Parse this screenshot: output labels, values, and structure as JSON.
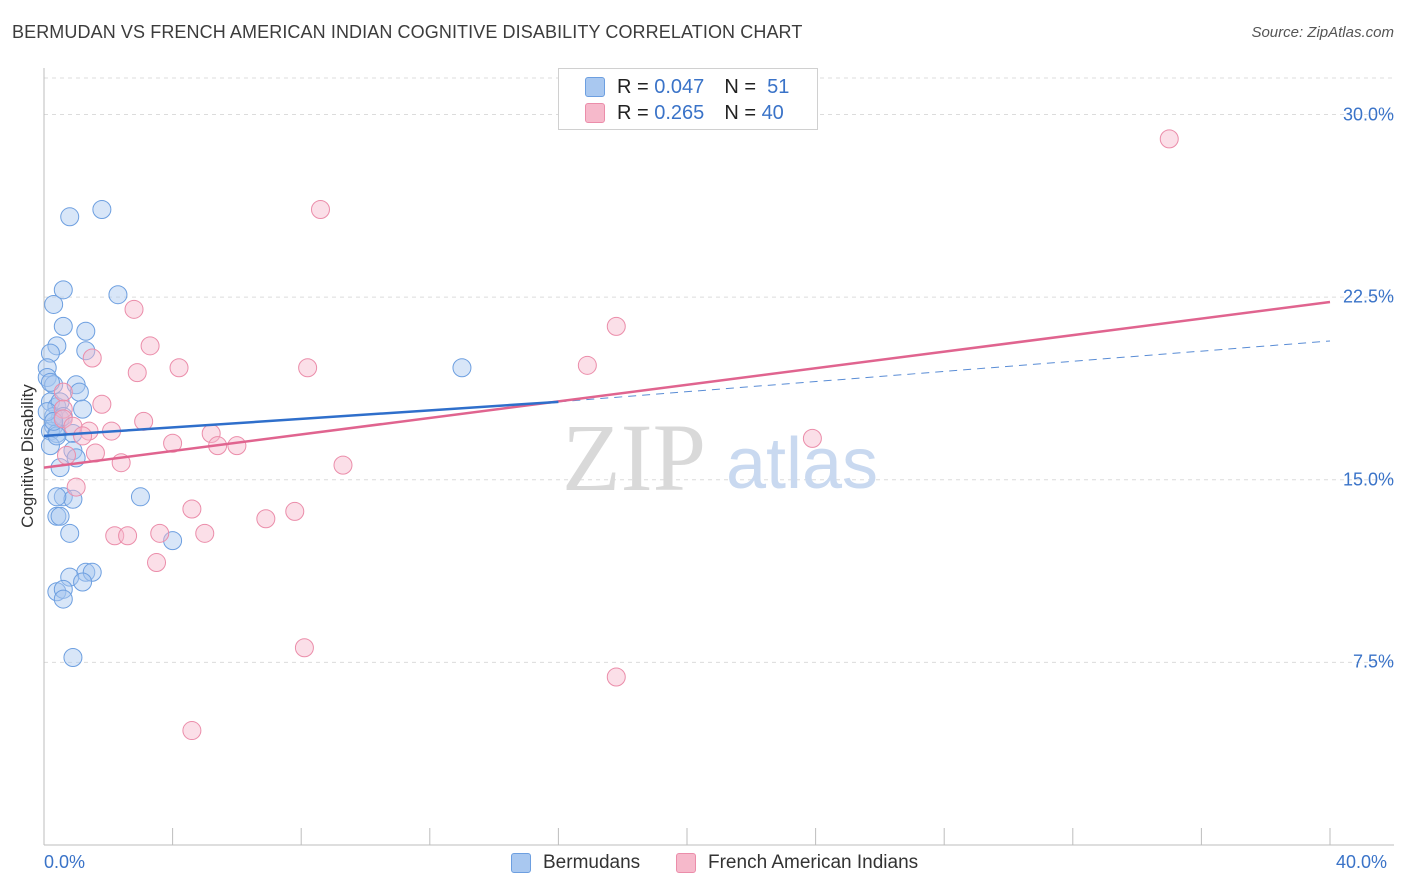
{
  "title": "BERMUDAN VS FRENCH AMERICAN INDIAN COGNITIVE DISABILITY CORRELATION CHART",
  "source": "Source: ZipAtlas.com",
  "watermark": {
    "zip": "ZIP",
    "atlas": "atlas"
  },
  "legend": {
    "rows": [
      {
        "r_label": "R =",
        "r_value": "0.047",
        "n_label": "N =",
        "n_value": "51"
      },
      {
        "r_label": "R =",
        "r_value": "0.265",
        "n_label": "N =",
        "n_value": "40"
      }
    ]
  },
  "bottom_legend": [
    "Bermudans",
    "French American Indians"
  ],
  "colors": {
    "blue_fill": "#a9c8f0",
    "blue_stroke": "#6d9fe0",
    "blue_line": "#2f6fcb",
    "pink_fill": "#f6b9cb",
    "pink_stroke": "#eb8daa",
    "pink_line": "#e0648f",
    "tick_text": "#3a73c8",
    "grid": "#dcdcdc"
  },
  "chart_data": {
    "type": "scatter",
    "title": "BERMUDAN VS FRENCH AMERICAN INDIAN COGNITIVE DISABILITY CORRELATION CHART",
    "xlabel": "",
    "ylabel": "Cognitive Disability",
    "xlim": [
      0,
      40
    ],
    "ylim": [
      0,
      31.5
    ],
    "x_tick_labels": [
      "0.0%",
      "40.0%"
    ],
    "y_ticks": [
      7.5,
      15.0,
      22.5,
      30.0
    ],
    "y_tick_labels": [
      "7.5%",
      "15.0%",
      "22.5%",
      "30.0%"
    ],
    "grid": true,
    "legend_position": "top-center",
    "series": [
      {
        "name": "Bermudans",
        "r": 0.047,
        "n": 51,
        "trend": {
          "x": [
            0,
            16
          ],
          "y": [
            16.8,
            18.2
          ],
          "dashed_to": [
            40,
            20.7
          ]
        },
        "points": [
          [
            0.8,
            25.8
          ],
          [
            1.8,
            26.1
          ],
          [
            0.3,
            22.2
          ],
          [
            0.6,
            22.8
          ],
          [
            2.3,
            22.6
          ],
          [
            0.6,
            21.3
          ],
          [
            1.3,
            21.1
          ],
          [
            0.4,
            20.5
          ],
          [
            0.2,
            20.2
          ],
          [
            1.3,
            20.3
          ],
          [
            0.1,
            19.6
          ],
          [
            0.1,
            19.2
          ],
          [
            0.3,
            18.9
          ],
          [
            1.0,
            18.9
          ],
          [
            1.1,
            18.6
          ],
          [
            0.2,
            18.2
          ],
          [
            0.4,
            18.0
          ],
          [
            1.2,
            17.9
          ],
          [
            0.5,
            17.5
          ],
          [
            0.3,
            17.2
          ],
          [
            0.2,
            17.0
          ],
          [
            0.4,
            16.9
          ],
          [
            0.9,
            16.9
          ],
          [
            0.2,
            16.4
          ],
          [
            0.9,
            16.2
          ],
          [
            1.0,
            15.9
          ],
          [
            0.5,
            15.5
          ],
          [
            0.6,
            14.3
          ],
          [
            0.9,
            14.2
          ],
          [
            0.4,
            14.3
          ],
          [
            3.0,
            14.3
          ],
          [
            0.4,
            13.5
          ],
          [
            0.5,
            13.5
          ],
          [
            0.8,
            12.8
          ],
          [
            4.0,
            12.5
          ],
          [
            1.3,
            11.2
          ],
          [
            1.5,
            11.2
          ],
          [
            0.8,
            11.0
          ],
          [
            1.2,
            10.8
          ],
          [
            0.4,
            10.4
          ],
          [
            0.6,
            10.5
          ],
          [
            0.6,
            10.1
          ],
          [
            0.9,
            7.7
          ],
          [
            13.0,
            19.6
          ],
          [
            0.3,
            17.6
          ],
          [
            0.5,
            18.2
          ],
          [
            0.1,
            17.8
          ],
          [
            0.2,
            19.0
          ],
          [
            0.4,
            16.8
          ],
          [
            0.6,
            17.6
          ],
          [
            0.3,
            17.4
          ]
        ]
      },
      {
        "name": "French American Indians",
        "r": 0.265,
        "n": 40,
        "trend": {
          "x": [
            0,
            40
          ],
          "y": [
            15.5,
            22.3
          ]
        },
        "points": [
          [
            35.0,
            29.0
          ],
          [
            8.6,
            26.1
          ],
          [
            2.8,
            22.0
          ],
          [
            17.8,
            21.3
          ],
          [
            3.3,
            20.5
          ],
          [
            1.5,
            20.0
          ],
          [
            4.2,
            19.6
          ],
          [
            8.2,
            19.6
          ],
          [
            16.9,
            19.7
          ],
          [
            2.9,
            19.4
          ],
          [
            0.6,
            18.6
          ],
          [
            1.8,
            18.1
          ],
          [
            0.6,
            17.9
          ],
          [
            3.1,
            17.4
          ],
          [
            0.6,
            17.5
          ],
          [
            1.4,
            17.0
          ],
          [
            2.1,
            17.0
          ],
          [
            5.2,
            16.9
          ],
          [
            4.0,
            16.5
          ],
          [
            5.4,
            16.4
          ],
          [
            6.0,
            16.4
          ],
          [
            23.9,
            16.7
          ],
          [
            0.7,
            16.0
          ],
          [
            1.6,
            16.1
          ],
          [
            2.4,
            15.7
          ],
          [
            9.3,
            15.6
          ],
          [
            1.0,
            14.7
          ],
          [
            4.6,
            13.8
          ],
          [
            7.8,
            13.7
          ],
          [
            6.9,
            13.4
          ],
          [
            3.6,
            12.8
          ],
          [
            5.0,
            12.8
          ],
          [
            2.2,
            12.7
          ],
          [
            2.6,
            12.7
          ],
          [
            3.5,
            11.6
          ],
          [
            8.1,
            8.1
          ],
          [
            17.8,
            6.9
          ],
          [
            4.6,
            4.7
          ],
          [
            0.9,
            17.2
          ],
          [
            1.2,
            16.8
          ]
        ]
      }
    ]
  }
}
